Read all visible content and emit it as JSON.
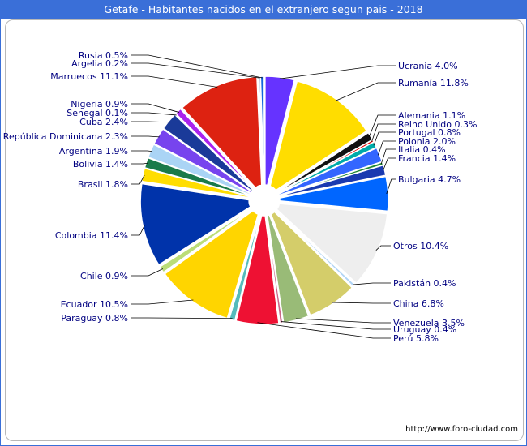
{
  "window": {
    "title": "Getafe - Habitantes nacidos en el extranjero segun pais - 2018",
    "watermark": "http://www.foro-ciudad.com"
  },
  "chart_data": {
    "type": "pie",
    "title": "Getafe - Habitantes nacidos en el extranjero segun pais - 2018",
    "unit": "%",
    "legend": "none",
    "slices": [
      {
        "name": "Ucrania",
        "value": 4.0,
        "label": "Ucrania 4.0%",
        "color": "#6633ff"
      },
      {
        "name": "Rumanía",
        "value": 11.8,
        "label": "Rumanía 11.8%",
        "color": "#ffdd00"
      },
      {
        "name": "Alemania",
        "value": 1.1,
        "label": "Alemania 1.1%",
        "color": "#111111"
      },
      {
        "name": "Reino Unido",
        "value": 0.3,
        "label": "Reino Unido 0.3%",
        "color": "#dd0000"
      },
      {
        "name": "Portugal",
        "value": 0.8,
        "label": "Portugal 0.8%",
        "color": "#00aaaa"
      },
      {
        "name": "Polonia",
        "value": 2.0,
        "label": "Polonia 2.0%",
        "color": "#3366ff"
      },
      {
        "name": "Italia",
        "value": 0.4,
        "label": "Italia 0.4%",
        "color": "#228833"
      },
      {
        "name": "Francia",
        "value": 1.4,
        "label": "Francia 1.4%",
        "color": "#1a3ab0"
      },
      {
        "name": "Bulgaria",
        "value": 4.7,
        "label": "Bulgaria 4.7%",
        "color": "#0066ff"
      },
      {
        "name": "Otros",
        "value": 10.4,
        "label": "Otros 10.4%",
        "color": "#eeeeee"
      },
      {
        "name": "Pakistán",
        "value": 0.4,
        "label": "Pakistán 0.4%",
        "color": "#b0d4f5"
      },
      {
        "name": "China",
        "value": 6.8,
        "label": "China 6.8%",
        "color": "#d4cd6a"
      },
      {
        "name": "Venezuela",
        "value": 3.5,
        "label": "Venezuela 3.5%",
        "color": "#99bb77"
      },
      {
        "name": "Uruguay",
        "value": 0.4,
        "label": "Uruguay 0.4%",
        "color": "#cc6688"
      },
      {
        "name": "Perú",
        "value": 5.8,
        "label": "Perú 5.8%",
        "color": "#ee1133"
      },
      {
        "name": "Paraguay",
        "value": 0.8,
        "label": "Paraguay 0.8%",
        "color": "#55bbbb"
      },
      {
        "name": "Ecuador",
        "value": 10.5,
        "label": "Ecuador 10.5%",
        "color": "#ffd500"
      },
      {
        "name": "Chile",
        "value": 0.9,
        "label": "Chile 0.9%",
        "color": "#bbdd77"
      },
      {
        "name": "Colombia",
        "value": 11.4,
        "label": "Colombia 11.4%",
        "color": "#0033aa"
      },
      {
        "name": "Brasil",
        "value": 1.8,
        "label": "Brasil 1.8%",
        "color": "#ffdd00"
      },
      {
        "name": "Bolivia",
        "value": 1.4,
        "label": "Bolivia 1.4%",
        "color": "#1a7a4a"
      },
      {
        "name": "Argentina",
        "value": 1.9,
        "label": "Argentina 1.9%",
        "color": "#aad4f5"
      },
      {
        "name": "República Dominicana",
        "value": 2.3,
        "label": "República Dominicana 2.3%",
        "color": "#7744ee"
      },
      {
        "name": "Cuba",
        "value": 2.4,
        "label": "Cuba 2.4%",
        "color": "#1a3a99"
      },
      {
        "name": "Senegal",
        "value": 0.1,
        "label": "Senegal 0.1%",
        "color": "#6699cc"
      },
      {
        "name": "Nigeria",
        "value": 0.9,
        "label": "Nigeria 0.9%",
        "color": "#aa22ee"
      },
      {
        "name": "Marruecos",
        "value": 11.1,
        "label": "Marruecos 11.1%",
        "color": "#dd2211"
      },
      {
        "name": "Argelia",
        "value": 0.2,
        "label": "Argelia 0.2%",
        "color": "#114488"
      },
      {
        "name": "Rusia",
        "value": 0.5,
        "label": "Rusia 0.5%",
        "color": "#1166dd"
      }
    ]
  }
}
